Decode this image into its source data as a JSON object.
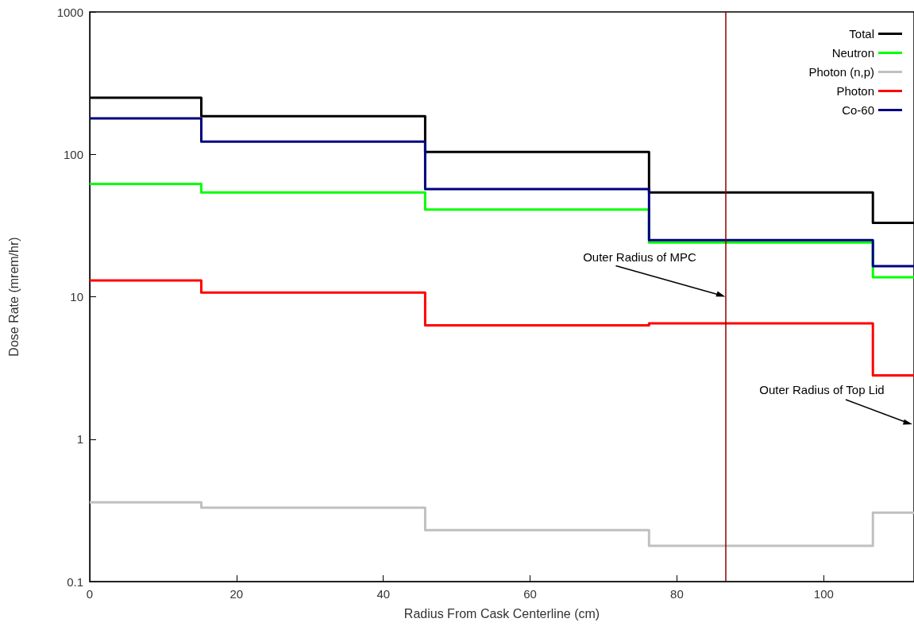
{
  "chart_data": {
    "type": "step",
    "xlabel": "Radius From Cask Centerline (cm)",
    "ylabel": "Dose Rate (mrem/hr)",
    "x": [
      0,
      15.2,
      45.7,
      76.2,
      106.7,
      112.3
    ],
    "xlim": [
      0,
      112.3
    ],
    "xticks": [
      0,
      20,
      40,
      60,
      80,
      100
    ],
    "ylim": [
      0.1,
      1000
    ],
    "yticks": [
      0.1,
      1,
      10,
      100,
      1000
    ],
    "log": "y",
    "grid": false,
    "legend": "top right",
    "marker": "none",
    "line_style": "solid",
    "series": [
      {
        "name": "Total",
        "color": "#000000",
        "values": [
          250,
          185,
          104,
          54,
          33,
          33
        ]
      },
      {
        "name": "Neutron",
        "color": "#00ff00",
        "values": [
          62,
          54,
          41,
          24,
          13.7,
          13.7
        ]
      },
      {
        "name": "Photon (n,p)",
        "color": "#c0c0c0",
        "values": [
          0.36,
          0.33,
          0.23,
          0.178,
          0.305,
          0.305
        ]
      },
      {
        "name": "Photon",
        "color": "#ff0000",
        "values": [
          13,
          10.7,
          6.3,
          6.5,
          2.8,
          2.8
        ]
      },
      {
        "name": "Co-60",
        "color": "#000080",
        "values": [
          179,
          123,
          57,
          25,
          16.4,
          16.4
        ]
      }
    ],
    "ref_lines": [
      {
        "axis": "x",
        "value": 86.6,
        "label": null,
        "color": "#8b0000"
      }
    ],
    "annotations": [
      {
        "text": "Outer Radius of MPC",
        "x": 86.6,
        "y": 10
      },
      "Outer Radius of Top Lid"
    ]
  }
}
